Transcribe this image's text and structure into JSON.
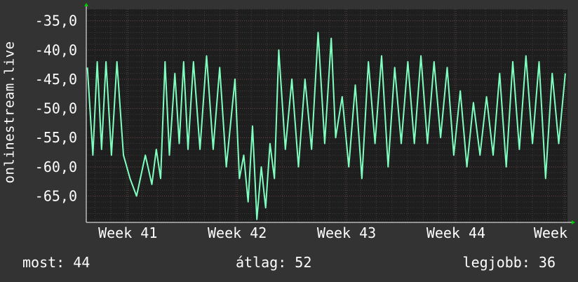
{
  "chart_data": {
    "type": "line",
    "ylabel": "onlinestream.live",
    "y_tick_labels": [
      "-35,0",
      "-40,0",
      "-45,0",
      "-50,0",
      "-55,0",
      "-60,0",
      "-65,0"
    ],
    "y_ticks": [
      -35,
      -40,
      -45,
      -50,
      -55,
      -60,
      -65
    ],
    "ylim": [
      -69.5,
      -33.0
    ],
    "x_tick_labels": [
      "Week 41",
      "Week 42",
      "Week 43",
      "Week 44",
      "Week"
    ],
    "x_ticks": [
      41,
      42,
      43,
      44,
      45
    ],
    "xlim": [
      40.62,
      45.02
    ],
    "grid": true,
    "line_color": "#7fffbf",
    "background_color": "#1e1e1e",
    "page_color": "#333333",
    "x": [
      40.63,
      40.68,
      40.72,
      40.76,
      40.8,
      40.85,
      40.9,
      40.96,
      41.02,
      41.08,
      41.16,
      41.22,
      41.26,
      41.3,
      41.34,
      41.38,
      41.43,
      41.47,
      41.51,
      41.55,
      41.6,
      41.66,
      41.72,
      41.78,
      41.84,
      41.9,
      41.98,
      42.02,
      42.06,
      42.1,
      42.14,
      42.18,
      42.22,
      42.26,
      42.3,
      42.34,
      42.38,
      42.44,
      42.5,
      42.56,
      42.62,
      42.68,
      42.74,
      42.8,
      42.86,
      42.9,
      42.96,
      43.02,
      43.08,
      43.14,
      43.2,
      43.26,
      43.32,
      43.38,
      43.44,
      43.5,
      43.56,
      43.62,
      43.68,
      43.74,
      43.8,
      43.86,
      43.92,
      43.98,
      44.04,
      44.1,
      44.16,
      44.22,
      44.28,
      44.34,
      44.4,
      44.46,
      44.52,
      44.58,
      44.64,
      44.7,
      44.76,
      44.82,
      44.88,
      44.94,
      45.0
    ],
    "y": [
      -43,
      -58,
      -42,
      -57,
      -42,
      -58,
      -42,
      -58,
      -62,
      -65,
      -58,
      -63,
      -57,
      -62,
      -42,
      -58,
      -44,
      -56,
      -42,
      -57,
      -42,
      -57,
      -41,
      -57,
      -43,
      -60,
      -45,
      -62,
      -58,
      -66,
      -53,
      -69,
      -60,
      -67,
      -56,
      -62,
      -40,
      -57,
      -45,
      -60,
      -45,
      -57,
      -37,
      -56,
      -38,
      -55,
      -48,
      -60,
      -46,
      -62,
      -42,
      -56,
      -41,
      -60,
      -43,
      -56,
      -42,
      -56,
      -41,
      -56,
      -42,
      -55,
      -43,
      -58,
      -47,
      -60,
      -49,
      -58,
      -48,
      -58,
      -44,
      -60,
      -42,
      -57,
      -41,
      -56,
      -42,
      -62,
      -44,
      -56,
      -44
    ]
  },
  "stats": {
    "current": "most: 44",
    "average": "átlag: 52",
    "best": "legjobb: 36"
  }
}
